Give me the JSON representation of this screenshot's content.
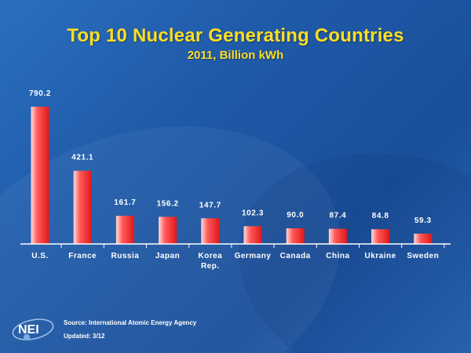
{
  "chart_data": {
    "type": "bar",
    "title": "Top 10 Nuclear Generating Countries",
    "subtitle": "2011, Billion kWh",
    "categories": [
      "U.S.",
      "France",
      "Russia",
      "Japan",
      "Korea Rep.",
      "Germany",
      "Canada",
      "China",
      "Ukraine",
      "Sweden"
    ],
    "category_lines": [
      [
        "U.S."
      ],
      [
        "France"
      ],
      [
        "Russia"
      ],
      [
        "Japan"
      ],
      [
        "Korea",
        "Rep."
      ],
      [
        "Germany"
      ],
      [
        "Canada"
      ],
      [
        "China"
      ],
      [
        "Ukraine"
      ],
      [
        "Sweden"
      ]
    ],
    "values": [
      790.2,
      421.1,
      161.7,
      156.2,
      147.7,
      102.3,
      90.0,
      87.4,
      84.8,
      59.3
    ],
    "value_labels": [
      "790.2",
      "421.1",
      "161.7",
      "156.2",
      "147.7",
      "102.3",
      "90.0",
      "87.4",
      "84.8",
      "59.3"
    ],
    "ylim": [
      0,
      790.2
    ],
    "grid": false,
    "legend": "none",
    "colors": {
      "bar_light": "#ffdcdc",
      "bar_mid": "#ff5a5a",
      "bar_dark": "#e01818",
      "axis": "#ffffff",
      "label": "#ffffff",
      "title": "#ffde22"
    }
  },
  "footer": {
    "source": "Source: International Atomic Energy Agency",
    "updated": "Updated: 3/12",
    "logo_text": "NEI"
  }
}
